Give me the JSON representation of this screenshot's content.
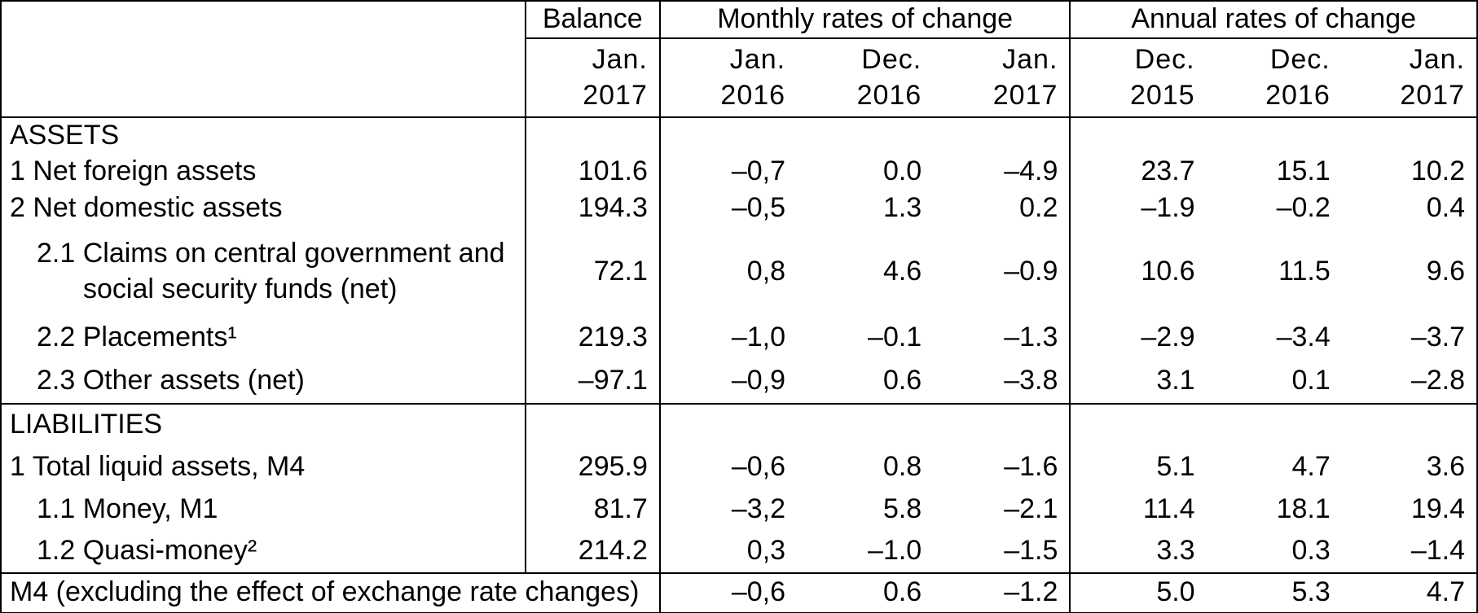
{
  "table": {
    "headers": {
      "balance": "Balance",
      "monthly": "Monthly rates of change",
      "annual": "Annual rates of change"
    },
    "sub_headers": [
      {
        "line1": "Jan.",
        "line2": "2017"
      },
      {
        "line1": "Jan.",
        "line2": "2016"
      },
      {
        "line1": "Dec.",
        "line2": "2016"
      },
      {
        "line1": "Jan.",
        "line2": "2017"
      },
      {
        "line1": "Dec.",
        "line2": "2015"
      },
      {
        "line1": "Dec.",
        "line2": "2016"
      },
      {
        "line1": "Jan.",
        "line2": "2017"
      }
    ],
    "rows": [
      {
        "type": "section",
        "indent": 0,
        "label": "ASSETS"
      },
      {
        "type": "data",
        "indent": 0,
        "label": "1 Net foreign assets",
        "values": [
          "101.6",
          "–0,7",
          "0.0",
          "–4.9",
          "23.7",
          "15.1",
          "10.2"
        ]
      },
      {
        "type": "data",
        "indent": 0,
        "label": "2 Net domestic assets",
        "values": [
          "194.3",
          "–0,5",
          "1.3",
          "0.2",
          "–1.9",
          "–0.2",
          "0.4"
        ]
      },
      {
        "type": "data",
        "indent": 1,
        "label_lines": [
          "2.1 Claims on central government and",
          "social security funds (net)"
        ],
        "values": [
          "72.1",
          "0,8",
          "4.6",
          "–0.9",
          "10.6",
          "11.5",
          "9.6"
        ]
      },
      {
        "type": "data",
        "indent": 1,
        "label": "2.2 Placements¹",
        "values": [
          "219.3",
          "–1,0",
          "–0.1",
          "–1.3",
          "–2.9",
          "–3.4",
          "–3.7"
        ]
      },
      {
        "type": "data",
        "indent": 1,
        "label": "2.3 Other assets (net)",
        "values": [
          "–97.1",
          "–0,9",
          "0.6",
          "–3.8",
          "3.1",
          "0.1",
          "–2.8"
        ]
      },
      {
        "type": "section",
        "indent": 0,
        "label": "LIABILITIES",
        "topline": true
      },
      {
        "type": "data",
        "indent": 0,
        "label": "1 Total liquid assets, M4",
        "values": [
          "295.9",
          "–0,6",
          "0.8",
          "–1.6",
          "5.1",
          "4.7",
          "3.6"
        ]
      },
      {
        "type": "data",
        "indent": 1,
        "label": "1.1 Money, M1",
        "values": [
          "81.7",
          "–3,2",
          "5.8",
          "–2.1",
          "11.4",
          "18.1",
          "19.4"
        ]
      },
      {
        "type": "data",
        "indent": 1,
        "label": "1.2 Quasi-money²",
        "values": [
          "214.2",
          "0,3",
          "–1.0",
          "–1.5",
          "3.3",
          "0.3",
          "–1.4"
        ]
      },
      {
        "type": "footer",
        "indent": 0,
        "label": "M4 (excluding the effect of exchange rate changes)",
        "values": [
          "–0,6",
          "0.6",
          "–1.2",
          "5.0",
          "5.3",
          "4.7"
        ],
        "topline": true
      }
    ]
  }
}
